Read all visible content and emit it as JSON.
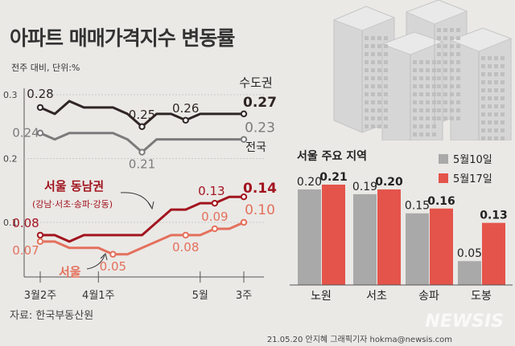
{
  "title": "아파트 매매가격지수 변동률",
  "unit_note": "전주 대비, 단위:%",
  "source": "자료: 한국부동산원",
  "credit": "21.05.20 안지혜 그래픽기자 hokma@newsis.com",
  "watermark": "NEWSIS",
  "colors": {
    "background": "#eae9e6",
    "metro": "#2f2525",
    "national": "#7b7b7b",
    "gangnam": "#a2141e",
    "seoul": "#e4705c",
    "bar_prev": "#a9a9a9",
    "bar_curr": "#e4544a"
  },
  "chart_data": [
    {
      "type": "line",
      "y_ticks": [
        "0.3",
        "0.2",
        "0.1"
      ],
      "x_tick_labels": [
        "3월2주",
        "4월1주",
        "5월",
        "3주"
      ],
      "ylim": [
        0,
        0.32
      ],
      "series": [
        {
          "name": "수도권",
          "values": [
            0.28,
            0.27,
            0.29,
            0.28,
            0.28,
            0.28,
            0.27,
            0.25,
            0.27,
            0.27,
            0.26,
            0.27,
            0.27,
            0.27,
            0.27
          ],
          "labels": [
            {
              "i": 0,
              "text": "0.28"
            },
            {
              "i": 7,
              "text": "0.25"
            },
            {
              "i": 10,
              "text": "0.26"
            },
            {
              "i": 14,
              "text": "0.27"
            }
          ]
        },
        {
          "name": "전국",
          "values": [
            0.24,
            0.23,
            0.24,
            0.24,
            0.24,
            0.24,
            0.23,
            0.21,
            0.23,
            0.23,
            0.23,
            0.23,
            0.23,
            0.23,
            0.23
          ],
          "labels": [
            {
              "i": 0,
              "text": "0.24"
            },
            {
              "i": 7,
              "text": "0.21"
            },
            {
              "i": 14,
              "text": "0.23"
            }
          ]
        },
        {
          "name": "서울 동남권",
          "sub": "(강남·서초·송파·강동)",
          "values": [
            0.08,
            0.08,
            0.07,
            0.08,
            0.08,
            0.08,
            0.08,
            0.08,
            0.1,
            0.12,
            0.12,
            0.13,
            0.13,
            0.14,
            0.14
          ],
          "labels": [
            {
              "i": 0,
              "text": "0.08"
            },
            {
              "i": 12,
              "text": "0.13"
            },
            {
              "i": 14,
              "text": "0.14"
            }
          ]
        },
        {
          "name": "서울",
          "values": [
            0.07,
            0.07,
            0.06,
            0.06,
            0.06,
            0.05,
            0.05,
            0.06,
            0.07,
            0.08,
            0.08,
            0.08,
            0.09,
            0.09,
            0.1
          ],
          "labels": [
            {
              "i": 0,
              "text": "0.07"
            },
            {
              "i": 5,
              "text": "0.05"
            },
            {
              "i": 10,
              "text": "0.08"
            },
            {
              "i": 12,
              "text": "0.09"
            },
            {
              "i": 14,
              "text": "0.10"
            }
          ]
        }
      ]
    },
    {
      "type": "bar",
      "title": "서울 주요 지역",
      "categories": [
        "노원",
        "서초",
        "송파",
        "도봉"
      ],
      "series": [
        {
          "name": "5월10일",
          "values": [
            0.2,
            0.19,
            0.15,
            0.05
          ],
          "labels": [
            "0.20",
            "0.19",
            "0.15",
            "0.05"
          ]
        },
        {
          "name": "5월17일",
          "values": [
            0.21,
            0.2,
            0.16,
            0.13
          ],
          "labels": [
            "0.21",
            "0.20",
            "0.16",
            "0.13"
          ]
        }
      ],
      "ylim": [
        0,
        0.22
      ]
    }
  ]
}
